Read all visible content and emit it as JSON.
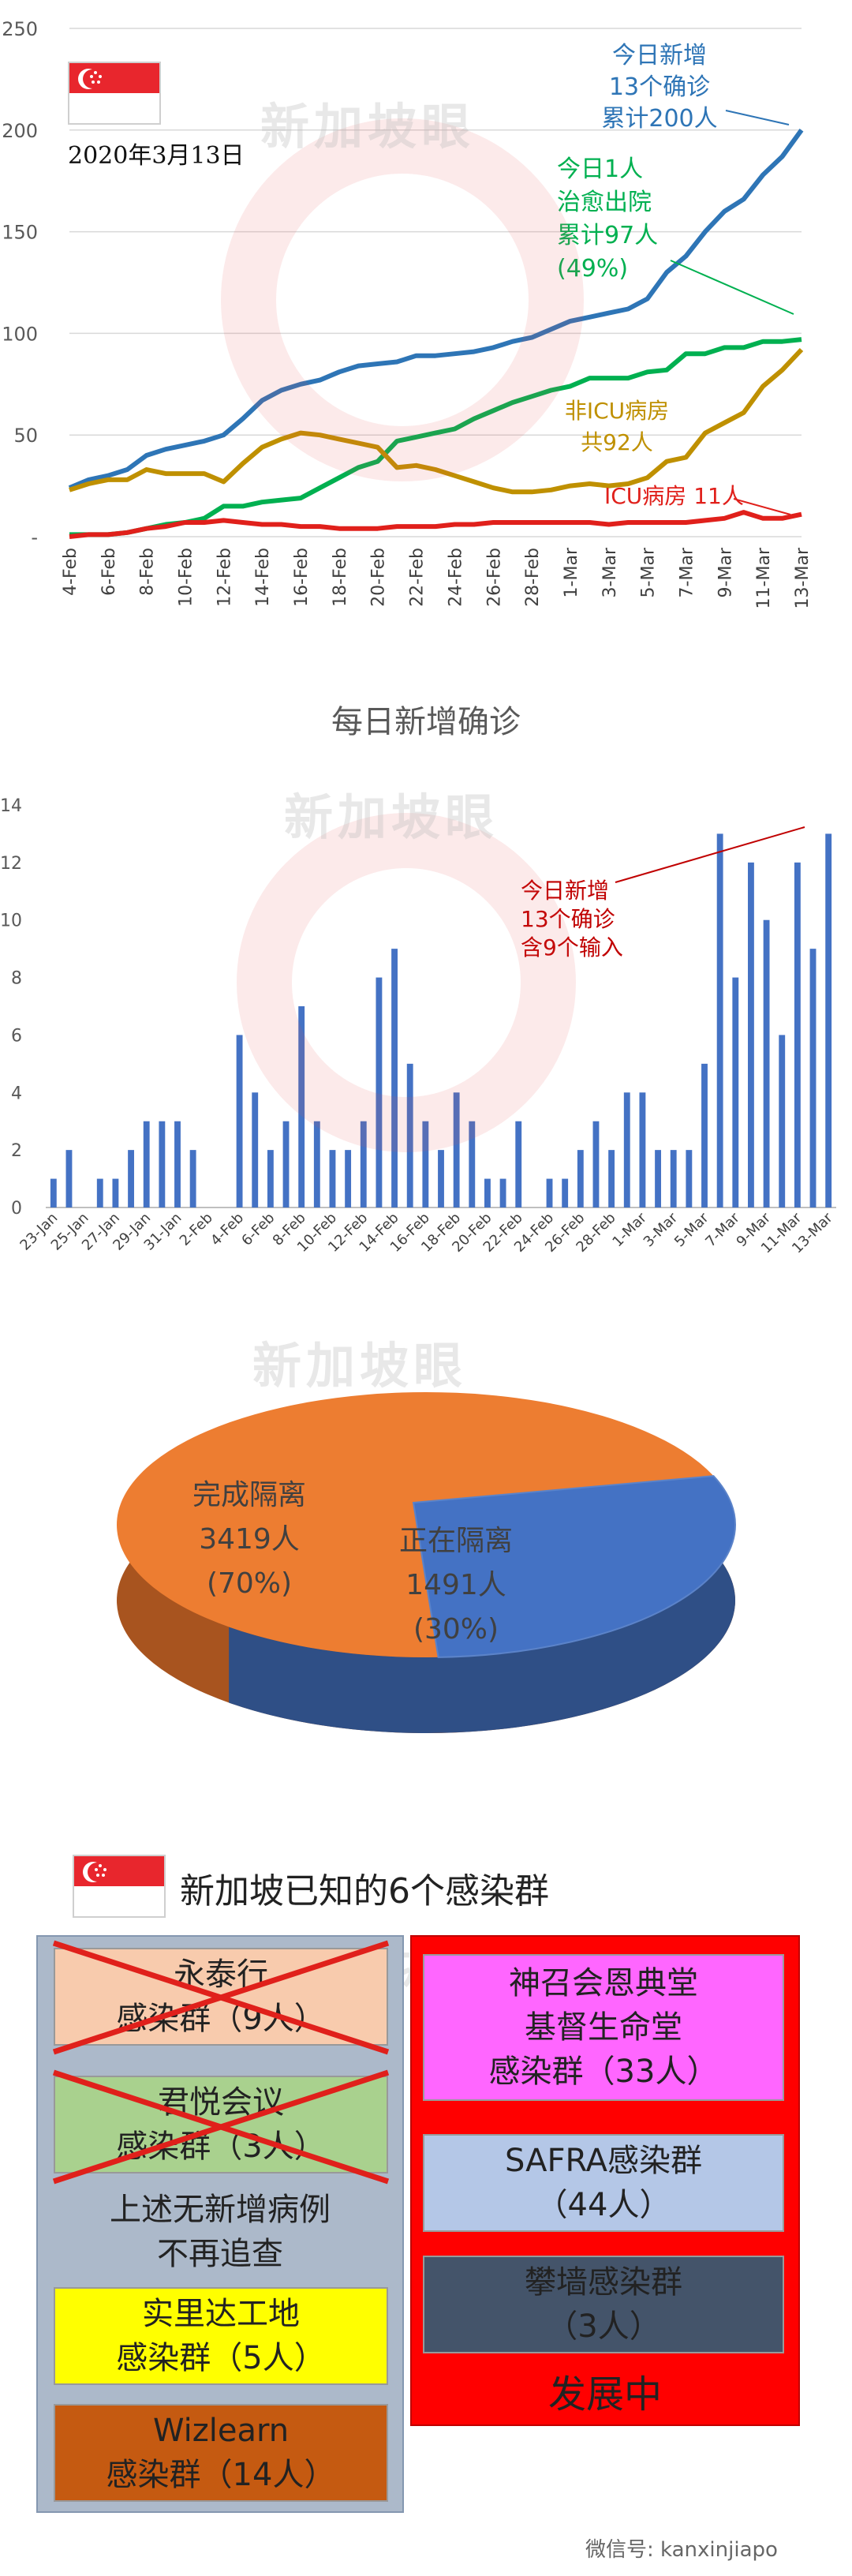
{
  "line_chart": {
    "date_label": "2020年3月13日",
    "watermark": "新加坡眼",
    "y_ticks": [
      "250",
      "200",
      "150",
      "100",
      "50",
      "-"
    ],
    "x_ticks": [
      "4-Feb",
      "6-Feb",
      "8-Feb",
      "10-Feb",
      "12-Feb",
      "14-Feb",
      "16-Feb",
      "18-Feb",
      "20-Feb",
      "22-Feb",
      "24-Feb",
      "26-Feb",
      "28-Feb",
      "1-Mar",
      "3-Mar",
      "5-Mar",
      "7-Mar",
      "9-Mar",
      "11-Mar",
      "13-Mar"
    ],
    "annotations": {
      "total": [
        "今日新增",
        "13个确诊",
        "累计200人"
      ],
      "discharged": [
        "今日1人",
        "治愈出院",
        "累计97人",
        "(49%)"
      ],
      "non_icu": [
        "非ICU病房",
        "共92人"
      ],
      "icu": "ICU病房 11人"
    }
  },
  "bar_chart": {
    "title": "每日新增确诊",
    "watermark": "新加坡眼",
    "y_ticks": [
      "14",
      "12",
      "10",
      "8",
      "6",
      "4",
      "2",
      "0"
    ],
    "x_ticks": [
      "23-Jan",
      "25-Jan",
      "27-Jan",
      "29-Jan",
      "31-Jan",
      "2-Feb",
      "4-Feb",
      "6-Feb",
      "8-Feb",
      "10-Feb",
      "12-Feb",
      "14-Feb",
      "16-Feb",
      "18-Feb",
      "20-Feb",
      "22-Feb",
      "24-Feb",
      "26-Feb",
      "28-Feb",
      "1-Mar",
      "3-Mar",
      "5-Mar",
      "7-Mar",
      "9-Mar",
      "11-Mar",
      "13-Mar"
    ],
    "annotation": [
      "今日新增",
      "13个确诊",
      "含9个输入"
    ]
  },
  "pie_chart": {
    "watermark": "新加坡眼",
    "completed": [
      "完成隔离",
      "3419人",
      "(70%)"
    ],
    "ongoing": [
      "正在隔离",
      "1491人",
      "(30%)"
    ]
  },
  "clusters": {
    "title": "新加坡已知的6个感染群",
    "watermark": "新加坡眼",
    "closed_note": [
      "上述无新增病例",
      "不再追查"
    ],
    "left": [
      {
        "lines": [
          "永泰行",
          "感染群（9人）"
        ]
      },
      {
        "lines": [
          "君悦会议",
          "感染群（3人）"
        ]
      },
      {
        "lines": [
          "实里达工地",
          "感染群（5人）"
        ]
      },
      {
        "lines": [
          "Wizlearn",
          "感染群（14人）"
        ]
      }
    ],
    "right": [
      {
        "lines": [
          "神召会恩典堂",
          "基督生命堂",
          "感染群（33人）"
        ]
      },
      {
        "lines": [
          "SAFRA感染群",
          "（44人）"
        ]
      },
      {
        "lines": [
          "攀墙感染群",
          "（3人）"
        ]
      }
    ],
    "developing": "发展中",
    "wechat": "微信号: kanxinjiapo"
  },
  "colors": {
    "total": "#2e75b6",
    "discharged": "#00b050",
    "non_icu": "#bf9000",
    "icu": "#e0201b",
    "bar": "#4472c4",
    "pie_orange": "#ed7d31",
    "pie_blue": "#4472c4"
  },
  "chart_data": [
    {
      "type": "line",
      "x": [
        "4-Feb",
        "5-Feb",
        "6-Feb",
        "7-Feb",
        "8-Feb",
        "9-Feb",
        "10-Feb",
        "11-Feb",
        "12-Feb",
        "13-Feb",
        "14-Feb",
        "15-Feb",
        "16-Feb",
        "17-Feb",
        "18-Feb",
        "19-Feb",
        "20-Feb",
        "21-Feb",
        "22-Feb",
        "23-Feb",
        "24-Feb",
        "25-Feb",
        "26-Feb",
        "27-Feb",
        "28-Feb",
        "29-Feb",
        "1-Mar",
        "2-Mar",
        "3-Mar",
        "4-Mar",
        "5-Mar",
        "6-Mar",
        "7-Mar",
        "8-Mar",
        "9-Mar",
        "10-Mar",
        "11-Mar",
        "12-Mar",
        "13-Mar"
      ],
      "ylim": [
        0,
        250
      ],
      "series": [
        {
          "values": [
            24,
            28,
            30,
            33,
            40,
            43,
            45,
            47,
            50,
            58,
            67,
            72,
            75,
            77,
            81,
            84,
            85,
            86,
            89,
            89,
            90,
            91,
            93,
            96,
            98,
            102,
            106,
            108,
            110,
            112,
            117,
            130,
            138,
            150,
            160,
            166,
            178,
            187,
            200
          ]
        },
        {
          "values": [
            1,
            1,
            1,
            2,
            4,
            6,
            7,
            9,
            15,
            15,
            17,
            18,
            19,
            24,
            29,
            34,
            37,
            47,
            49,
            51,
            53,
            58,
            62,
            66,
            69,
            72,
            74,
            78,
            78,
            78,
            81,
            82,
            90,
            90,
            93,
            93,
            96,
            96,
            97
          ]
        },
        {
          "values": [
            23,
            26,
            28,
            28,
            33,
            31,
            31,
            31,
            27,
            36,
            44,
            48,
            51,
            50,
            48,
            46,
            44,
            34,
            35,
            33,
            30,
            27,
            24,
            22,
            22,
            23,
            25,
            26,
            25,
            26,
            29,
            37,
            39,
            51,
            56,
            61,
            74,
            82,
            92
          ]
        },
        {
          "values": [
            0,
            1,
            1,
            2,
            4,
            5,
            7,
            7,
            8,
            7,
            6,
            6,
            5,
            5,
            4,
            4,
            4,
            5,
            5,
            5,
            6,
            6,
            7,
            7,
            7,
            7,
            7,
            7,
            6,
            7,
            7,
            7,
            7,
            8,
            9,
            12,
            9,
            9,
            11
          ]
        }
      ]
    },
    {
      "type": "bar",
      "categories": [
        "23-Jan",
        "24-Jan",
        "25-Jan",
        "26-Jan",
        "27-Jan",
        "28-Jan",
        "29-Jan",
        "30-Jan",
        "31-Jan",
        "1-Feb",
        "2-Feb",
        "3-Feb",
        "4-Feb",
        "5-Feb",
        "6-Feb",
        "7-Feb",
        "8-Feb",
        "9-Feb",
        "10-Feb",
        "11-Feb",
        "12-Feb",
        "13-Feb",
        "14-Feb",
        "15-Feb",
        "16-Feb",
        "17-Feb",
        "18-Feb",
        "19-Feb",
        "20-Feb",
        "21-Feb",
        "22-Feb",
        "23-Feb",
        "24-Feb",
        "25-Feb",
        "26-Feb",
        "27-Feb",
        "28-Feb",
        "29-Feb",
        "1-Mar",
        "2-Mar",
        "3-Mar",
        "4-Mar",
        "5-Mar",
        "6-Mar",
        "7-Mar",
        "8-Mar",
        "9-Mar",
        "10-Mar",
        "11-Mar",
        "12-Mar",
        "13-Mar"
      ],
      "values": [
        1,
        2,
        0,
        1,
        1,
        2,
        3,
        3,
        3,
        2,
        0,
        0,
        6,
        4,
        2,
        3,
        7,
        3,
        2,
        2,
        3,
        8,
        9,
        5,
        3,
        2,
        4,
        3,
        1,
        1,
        3,
        0,
        1,
        1,
        2,
        3,
        2,
        4,
        4,
        2,
        2,
        2,
        5,
        13,
        8,
        12,
        10,
        6,
        12,
        9,
        13
      ],
      "title": "每日新增确诊",
      "ylim": [
        0,
        14
      ]
    },
    {
      "type": "pie",
      "categories": [
        "完成隔离",
        "正在隔离"
      ],
      "values": [
        3419,
        1491
      ]
    }
  ]
}
